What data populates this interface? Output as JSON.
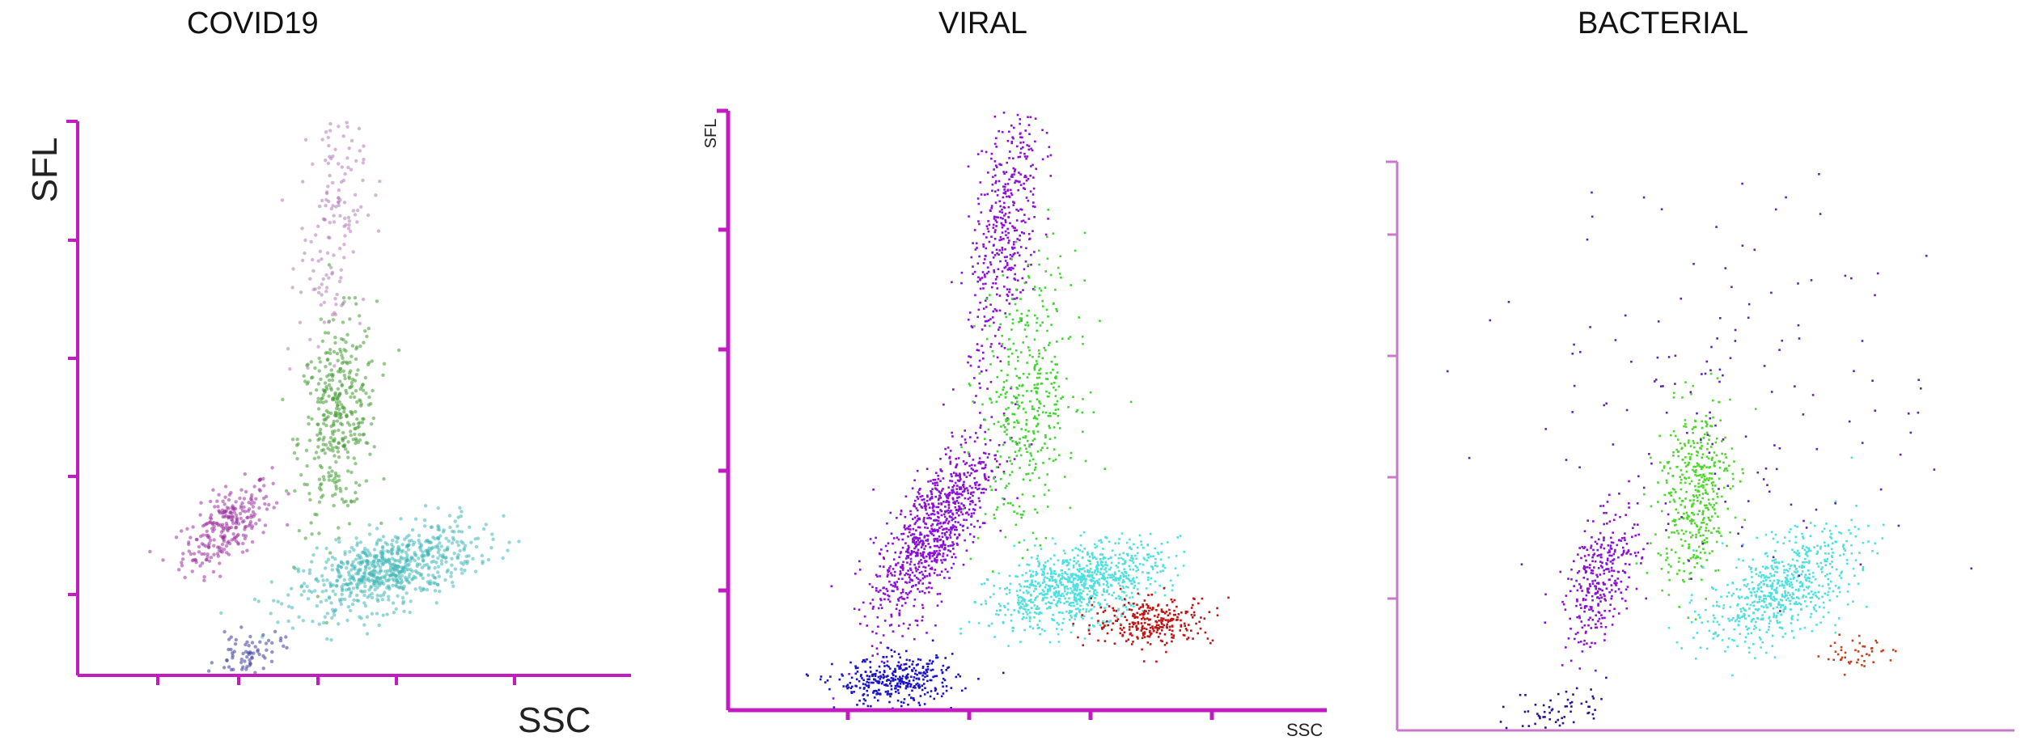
{
  "titles": [
    "COVID19",
    "VIRAL",
    "BACTERIAL"
  ],
  "chart_data": [
    {
      "type": "scatter",
      "title": "COVID19",
      "xlabel": "SSC",
      "ylabel": "SFL",
      "xlim": [
        0,
        100
      ],
      "ylim": [
        0,
        100
      ],
      "axis_color": "#c21bc2",
      "clusters": [
        {
          "color": "#9b2f9e",
          "center": [
            27,
            27
          ],
          "spread": [
            4,
            4
          ],
          "count": 260,
          "corr": 0.6,
          "style": "soft"
        },
        {
          "color": "#3f9a2f",
          "center": [
            47,
            46
          ],
          "spread": [
            3.5,
            9
          ],
          "count": 380,
          "corr": 0.2,
          "style": "soft"
        },
        {
          "color": "#3fb7b7",
          "center": [
            56,
            19
          ],
          "spread": [
            8,
            4
          ],
          "count": 700,
          "corr": 0.55,
          "style": "soft"
        },
        {
          "color": "#3a3a9e",
          "center": [
            31,
            4
          ],
          "spread": [
            3,
            2
          ],
          "count": 70,
          "corr": 0.3,
          "style": "soft"
        },
        {
          "color": "#b07ab5",
          "center": [
            46,
            82
          ],
          "spread": [
            3,
            12
          ],
          "count": 160,
          "corr": 0.3,
          "style": "soft"
        }
      ]
    },
    {
      "type": "scatter",
      "title": "VIRAL",
      "xlabel": "SSC",
      "ylabel": "SFL",
      "xlim": [
        0,
        100
      ],
      "ylim": [
        0,
        100
      ],
      "axis_color": "#c21bc2",
      "clusters": [
        {
          "color": "#8b0fd6",
          "center": [
            34,
            30
          ],
          "spread": [
            5,
            8
          ],
          "count": 900,
          "corr": 0.75,
          "style": "dot"
        },
        {
          "color": "#8b0fd6",
          "center": [
            46,
            80
          ],
          "spread": [
            3,
            12
          ],
          "count": 450,
          "corr": 0.5,
          "style": "dot"
        },
        {
          "color": "#3fd62f",
          "center": [
            50,
            52
          ],
          "spread": [
            4,
            11
          ],
          "count": 420,
          "corr": 0.2,
          "style": "dot"
        },
        {
          "color": "#4fe0e0",
          "center": [
            58,
            21
          ],
          "spread": [
            7,
            3.5
          ],
          "count": 900,
          "corr": 0.45,
          "style": "dot"
        },
        {
          "color": "#c01515",
          "center": [
            71,
            15
          ],
          "spread": [
            5,
            2
          ],
          "count": 280,
          "corr": 0.1,
          "style": "dot"
        },
        {
          "color": "#1a14c9",
          "center": [
            28,
            5
          ],
          "spread": [
            5,
            2
          ],
          "count": 350,
          "corr": 0.1,
          "style": "dot"
        }
      ]
    },
    {
      "type": "scatter",
      "title": "BACTERIAL",
      "xlabel": "",
      "ylabel": "",
      "xlim": [
        0,
        100
      ],
      "ylim": [
        0,
        100
      ],
      "axis_color": "#c879c8",
      "clusters": [
        {
          "color": "#8b0fd6",
          "center": [
            33,
            27
          ],
          "spread": [
            3,
            6
          ],
          "count": 320,
          "corr": 0.5,
          "style": "dot"
        },
        {
          "color": "#4fd62f",
          "center": [
            48,
            42
          ],
          "spread": [
            3,
            8
          ],
          "count": 420,
          "corr": 0.2,
          "style": "dot"
        },
        {
          "color": "#4fe0e0",
          "center": [
            62,
            25
          ],
          "spread": [
            6,
            5
          ],
          "count": 650,
          "corr": 0.55,
          "style": "dot"
        },
        {
          "color": "#c0441f",
          "center": [
            75,
            14
          ],
          "spread": [
            3,
            1.5
          ],
          "count": 45,
          "corr": 0.2,
          "style": "dot"
        },
        {
          "color": "#2a1690",
          "center": [
            26,
            4
          ],
          "spread": [
            4,
            2
          ],
          "count": 60,
          "corr": 0.2,
          "style": "dot"
        },
        {
          "color": "#5a2aa8",
          "center": [
            55,
            60
          ],
          "spread": [
            16,
            18
          ],
          "count": 150,
          "corr": 0.0,
          "style": "dot"
        }
      ]
    }
  ]
}
